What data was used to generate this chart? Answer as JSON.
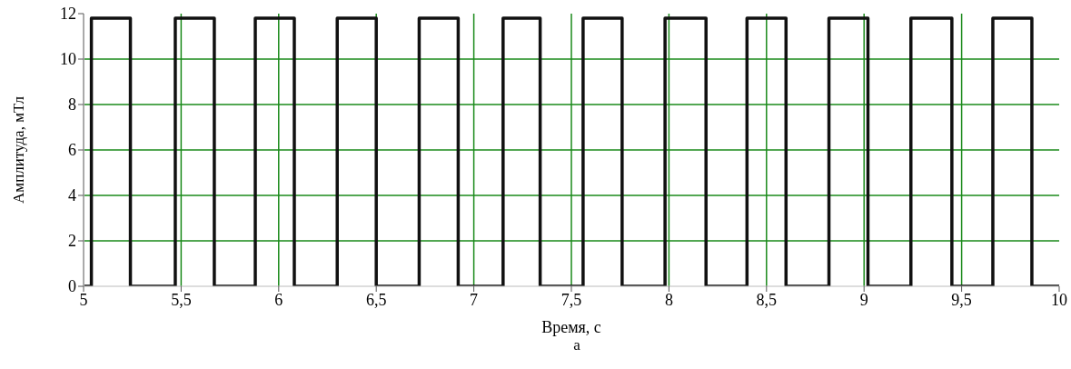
{
  "chart_data": {
    "type": "step",
    "xlabel": "Время, с",
    "ylabel": "Амплитуда,  мТл",
    "annotations": [
      "а"
    ],
    "xlim": [
      5,
      10
    ],
    "xticks": [
      5,
      {
        "value": 5.5,
        "label": "5,5"
      },
      6,
      {
        "value": 6.5,
        "label": "6,5"
      },
      7,
      {
        "value": 7.5,
        "label": "7,5"
      },
      8,
      {
        "value": 8.5,
        "label": "8,5"
      },
      9,
      {
        "value": 9.5,
        "label": "9,5"
      },
      10
    ],
    "ylim": [
      0,
      12
    ],
    "yticks": [
      0,
      2,
      4,
      6,
      8,
      10,
      12
    ],
    "grid": true,
    "line_style": "solid",
    "marker": "none",
    "series": [
      {
        "color": "#111111",
        "x": [
          5,
          5.04,
          5.24,
          5.47,
          5.67,
          5.88,
          6.08,
          6.3,
          6.5,
          6.72,
          6.92,
          7.15,
          7.34,
          7.56,
          7.76,
          7.98,
          8.19,
          8.4,
          8.6,
          8.82,
          9.02,
          9.24,
          9.45,
          9.66,
          9.86,
          10
        ],
        "values": [
          0,
          11.8,
          0,
          11.8,
          0,
          11.8,
          0,
          11.8,
          0,
          11.8,
          0,
          11.8,
          0,
          11.8,
          0,
          11.8,
          0,
          11.8,
          0,
          11.8,
          0,
          11.8,
          0,
          11.8,
          0,
          0
        ]
      }
    ]
  }
}
